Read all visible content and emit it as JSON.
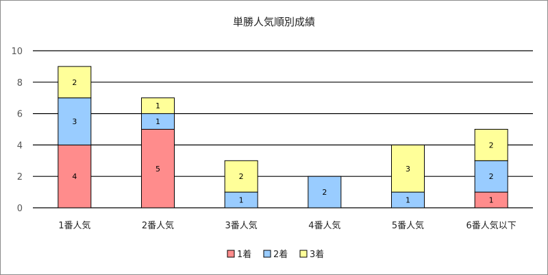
{
  "chart_data": {
    "type": "bar",
    "stacked": true,
    "title": "単勝人気順別成績",
    "xlabel": "",
    "ylabel": "",
    "ylim": [
      0,
      10
    ],
    "yticks": [
      0,
      2,
      4,
      6,
      8,
      10
    ],
    "grid": true,
    "legend_position": "bottom",
    "categories": [
      "1番人気",
      "2番人気",
      "3番人気",
      "4番人気",
      "5番人気",
      "6番人気以下"
    ],
    "series": [
      {
        "name": "1着",
        "color": "#ff8c8c",
        "values": [
          4,
          5,
          0,
          0,
          0,
          1
        ]
      },
      {
        "name": "2着",
        "color": "#99ccff",
        "values": [
          3,
          1,
          1,
          2,
          1,
          2
        ]
      },
      {
        "name": "3着",
        "color": "#ffff99",
        "values": [
          2,
          1,
          2,
          0,
          3,
          2
        ]
      }
    ]
  }
}
